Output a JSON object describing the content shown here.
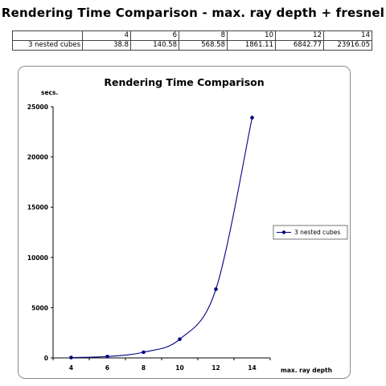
{
  "page": {
    "title": "Rendering Time Comparison - max. ray depth + fresnel"
  },
  "table": {
    "header": [
      "",
      "4",
      "6",
      "8",
      "10",
      "12",
      "14"
    ],
    "rows": [
      [
        "3 nested cubes",
        "38.8",
        "140.58",
        "568.58",
        "1861.11",
        "6842.77",
        "23916.05"
      ]
    ]
  },
  "chart_data": {
    "type": "line",
    "title": "Rendering Time Comparison",
    "xlabel": "max. ray depth",
    "ylabel": "secs.",
    "categories": [
      "4",
      "6",
      "8",
      "10",
      "12",
      "14"
    ],
    "y_ticks": [
      0,
      5000,
      10000,
      15000,
      20000,
      25000
    ],
    "ylim": [
      0,
      25000
    ],
    "grid": false,
    "legend_position": "right",
    "smoothed": true,
    "series": [
      {
        "name": "3 nested cubes",
        "values": [
          38.8,
          140.58,
          568.58,
          1861.11,
          6842.77,
          23916.05
        ],
        "color": "#000080"
      }
    ]
  }
}
